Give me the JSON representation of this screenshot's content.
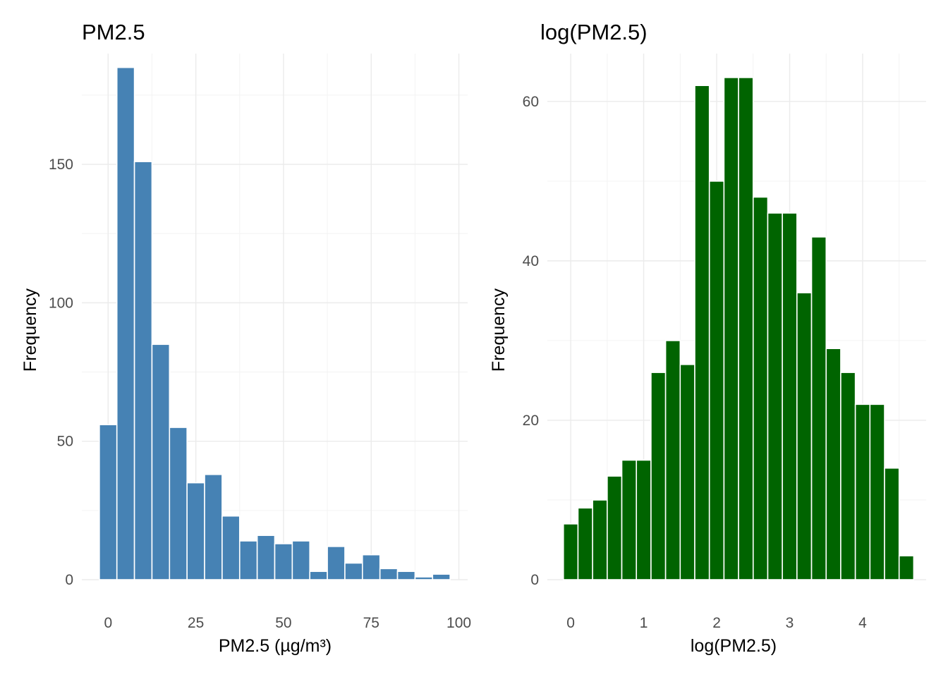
{
  "chart_data": [
    {
      "type": "bar",
      "title": "PM2.5",
      "xlabel": "PM2.5 (µg/m³)",
      "ylabel": "Frequency",
      "color": "#4682b4",
      "bin_width": 5,
      "x": [
        0,
        5,
        10,
        15,
        20,
        25,
        30,
        35,
        40,
        45,
        50,
        55,
        60,
        65,
        70,
        75,
        80,
        85,
        90,
        95
      ],
      "values": [
        56,
        185,
        151,
        85,
        55,
        35,
        38,
        23,
        14,
        16,
        13,
        14,
        3,
        12,
        6,
        9,
        4,
        3,
        1,
        2
      ],
      "xlim": [
        -7.5,
        102.5
      ],
      "ylim": [
        0,
        185
      ],
      "x_ticks": [
        0,
        25,
        50,
        75,
        100
      ],
      "x_tick_labels": [
        "0",
        "25",
        "50",
        "75",
        "100"
      ],
      "y_ticks": [
        0,
        50,
        100,
        150
      ],
      "y_tick_labels": [
        "0",
        "50",
        "100",
        "150"
      ],
      "grid": true
    },
    {
      "type": "bar",
      "title": "log(PM2.5)",
      "xlabel": "log(PM2.5)",
      "ylabel": "Frequency",
      "color": "#006400",
      "bin_width": 0.2,
      "x": [
        0.0,
        0.2,
        0.4,
        0.6,
        0.8,
        1.0,
        1.2,
        1.4,
        1.6,
        1.8,
        2.0,
        2.2,
        2.4,
        2.6,
        2.8,
        3.0,
        3.2,
        3.4,
        3.6,
        3.8,
        4.0,
        4.2,
        4.4,
        4.6
      ],
      "values": [
        7,
        9,
        10,
        13,
        15,
        15,
        26,
        30,
        27,
        62,
        50,
        63,
        63,
        48,
        46,
        46,
        36,
        43,
        29,
        26,
        22,
        22,
        14,
        3
      ],
      "xlim": [
        -0.32,
        4.87
      ],
      "ylim": [
        0,
        63
      ],
      "x_ticks": [
        0,
        1,
        2,
        3,
        4
      ],
      "x_tick_labels": [
        "0",
        "1",
        "2",
        "3",
        "4"
      ],
      "y_ticks": [
        0,
        20,
        40,
        60
      ],
      "y_tick_labels": [
        "0",
        "20",
        "40",
        "60"
      ],
      "grid": true
    }
  ]
}
